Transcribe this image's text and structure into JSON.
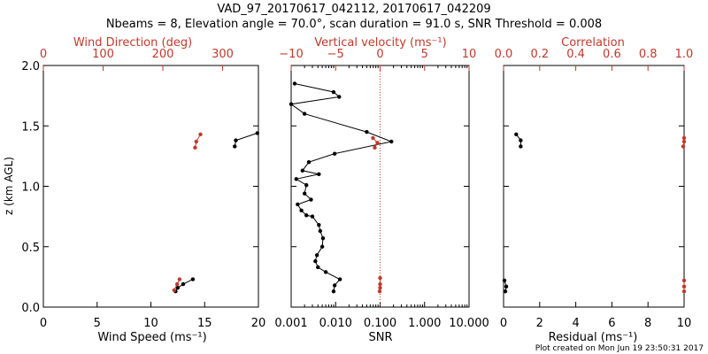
{
  "header": {
    "title_line1": "VAD_97_20170617_042112, 20170617_042209",
    "title_line2": "Nbeams = 8, Elevation angle = 70.0°, scan duration = 91.0 s, SNR Threshold = 0.008"
  },
  "footer": {
    "created": "Plot created on Mon Jun 19 23:50:31 2017"
  },
  "colors": {
    "primary": "#000000",
    "secondary": "#c0392b"
  },
  "chart_data": [
    {
      "type": "line",
      "panel": "wind",
      "ylabel": "z (km AGL)",
      "ylim": [
        0,
        2.0
      ],
      "yticks": [
        0.0,
        0.5,
        1.0,
        1.5,
        2.0
      ],
      "ytick_labels": [
        "0.0",
        "0.5",
        "1.0",
        "1.5",
        "2.0"
      ],
      "xlabel": "Wind Speed (ms⁻¹)",
      "xlim": [
        0,
        20
      ],
      "xticks": [
        0,
        5,
        10,
        15,
        20
      ],
      "xtick_labels": [
        "0",
        "5",
        "10",
        "15",
        "20"
      ],
      "top_label": "Wind Direction (deg)",
      "top_xlim": [
        0,
        360
      ],
      "top_ticks": [
        0,
        100,
        200,
        300
      ],
      "top_tick_labels": [
        "0",
        "100",
        "200",
        "300"
      ],
      "series": [
        {
          "role": "wind_speed",
          "axis": "bottom",
          "color": "#000000",
          "segments": [
            [
              [
                12.3,
                0.13
              ],
              [
                12.5,
                0.16
              ],
              [
                13.0,
                0.19
              ],
              [
                13.9,
                0.23
              ]
            ],
            [
              [
                17.8,
                1.33
              ],
              [
                17.9,
                1.38
              ],
              [
                19.9,
                1.44
              ]
            ]
          ]
        },
        {
          "role": "wind_direction",
          "axis": "top",
          "color": "#c0392b",
          "segments": [
            [
              [
                219,
                0.14
              ],
              [
                224,
                0.19
              ],
              [
                228,
                0.23
              ]
            ],
            [
              [
                254,
                1.32
              ],
              [
                256,
                1.37
              ],
              [
                263,
                1.43
              ]
            ]
          ]
        }
      ]
    },
    {
      "type": "line",
      "panel": "snr",
      "ylim": [
        0,
        2.0
      ],
      "xlabel": "SNR",
      "xscale": "log",
      "xlim": [
        0.001,
        10
      ],
      "xticks": [
        0.001,
        0.01,
        0.1,
        1,
        10
      ],
      "xtick_labels": [
        "0.001",
        "0.010",
        "0.100",
        "1.000",
        "10.000"
      ],
      "top_label": "Vertical velocity (ms⁻¹)",
      "top_xlim": [
        -10,
        10
      ],
      "top_ticks": [
        -10,
        -5,
        0,
        5,
        10
      ],
      "top_tick_labels": [
        "−10",
        "−5",
        "0",
        "5",
        "10"
      ],
      "series": [
        {
          "role": "snr",
          "axis": "bottom",
          "color": "#000000",
          "points": [
            [
              0.009,
              0.13
            ],
            [
              0.0095,
              0.18
            ],
            [
              0.0125,
              0.23
            ],
            [
              0.006,
              0.29
            ],
            [
              0.004,
              0.33
            ],
            [
              0.0035,
              0.38
            ],
            [
              0.0038,
              0.43
            ],
            [
              0.005,
              0.5
            ],
            [
              0.0052,
              0.57
            ],
            [
              0.0045,
              0.63
            ],
            [
              0.0042,
              0.68
            ],
            [
              0.003,
              0.75
            ],
            [
              0.0022,
              0.76
            ],
            [
              0.0017,
              0.8
            ],
            [
              0.0014,
              0.85
            ],
            [
              0.0028,
              0.89
            ],
            [
              0.002,
              0.94
            ],
            [
              0.0022,
              1.01
            ],
            [
              0.0013,
              1.06
            ],
            [
              0.0042,
              1.1
            ],
            [
              0.0018,
              1.13
            ],
            [
              0.0025,
              1.2
            ],
            [
              0.0095,
              1.27
            ],
            [
              0.18,
              1.37
            ],
            [
              0.05,
              1.45
            ],
            [
              0.002,
              1.6
            ],
            [
              0.001,
              1.68
            ],
            [
              0.012,
              1.74
            ],
            [
              0.009,
              1.78
            ],
            [
              0.0012,
              1.85
            ]
          ]
        },
        {
          "role": "vertical_velocity",
          "axis": "top",
          "color": "#c0392b",
          "segments": [
            [
              [
                -0.05,
                0.13
              ],
              [
                0.0,
                0.16
              ],
              [
                0.0,
                0.19
              ],
              [
                0.0,
                0.24
              ]
            ],
            [
              [
                -0.6,
                1.32
              ],
              [
                -0.3,
                1.36
              ],
              [
                -0.8,
                1.4
              ]
            ]
          ]
        }
      ],
      "reference_line": {
        "axis": "bottom",
        "x": 0.1,
        "style": "dotted",
        "color": "#c0392b"
      }
    },
    {
      "type": "line",
      "panel": "residual",
      "ylim": [
        0,
        2.0
      ],
      "xlabel": "Residual (ms⁻¹)",
      "xlim": [
        0,
        10
      ],
      "xticks": [
        0,
        2,
        4,
        6,
        8,
        10
      ],
      "xtick_labels": [
        "0",
        "2",
        "4",
        "6",
        "8",
        "10"
      ],
      "top_label": "Correlation",
      "top_xlim": [
        0.0,
        1.0
      ],
      "top_ticks": [
        0.0,
        0.2,
        0.4,
        0.6,
        0.8,
        1.0
      ],
      "top_tick_labels": [
        "0.0",
        "0.2",
        "0.4",
        "0.6",
        "0.8",
        "1.0"
      ],
      "series": [
        {
          "role": "residual",
          "axis": "bottom",
          "color": "#000000",
          "segments": [
            [
              [
                0.1,
                0.13
              ],
              [
                0.15,
                0.17
              ],
              [
                0.05,
                0.22
              ]
            ],
            [
              [
                0.95,
                1.33
              ],
              [
                0.95,
                1.38
              ],
              [
                0.7,
                1.43
              ]
            ]
          ]
        },
        {
          "role": "correlation",
          "axis": "top",
          "color": "#c0392b",
          "segments": [
            [
              [
                1.0,
                0.13
              ],
              [
                1.0,
                0.17
              ],
              [
                1.0,
                0.22
              ]
            ],
            [
              [
                0.995,
                1.33
              ],
              [
                1.0,
                1.37
              ],
              [
                1.0,
                1.4
              ]
            ]
          ]
        }
      ]
    }
  ]
}
